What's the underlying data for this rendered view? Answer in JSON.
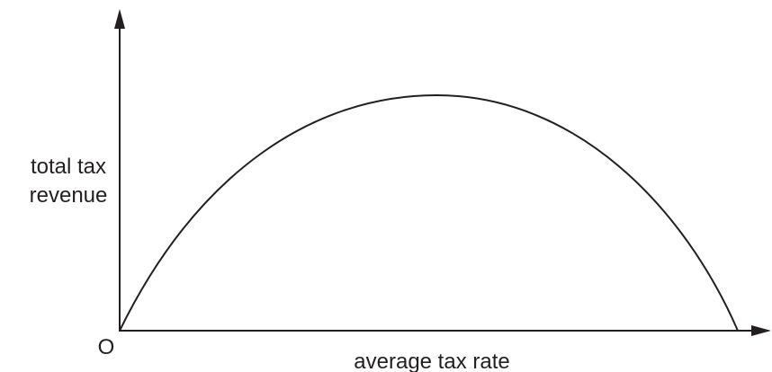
{
  "labels": {
    "y_axis": [
      "total tax",
      "revenue"
    ],
    "origin": "O",
    "x_axis": "average tax rate"
  }
}
